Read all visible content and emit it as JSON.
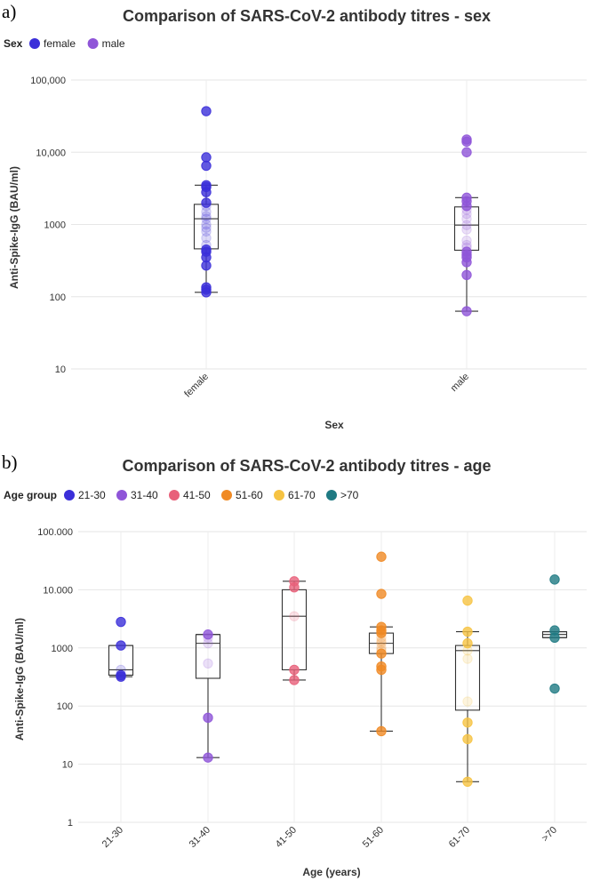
{
  "panels": [
    {
      "panel_label": "a)",
      "legend_title": "Sex",
      "chart_data": {
        "type": "box",
        "title": "Comparison of SARS-CoV-2 antibody titres - sex",
        "xlabel": "Sex",
        "ylabel": "Anti-Spike-IgG (BAU/ml)",
        "yscale": "log",
        "ylim": [
          10,
          100000
        ],
        "yticks": [
          10,
          100,
          1000,
          10000,
          100000
        ],
        "ytick_labels": [
          "10",
          "100",
          "1000",
          "10,000",
          "100,000"
        ],
        "categories": [
          "female",
          "male"
        ],
        "legend": [
          {
            "label": "female",
            "color": "#3b2fd9"
          },
          {
            "label": "male",
            "color": "#8f55d8"
          }
        ],
        "boxes": [
          {
            "category": "female",
            "color": "#3b2fd9",
            "whisker_low": 115,
            "q1": 460,
            "median": 1200,
            "q3": 1900,
            "whisker_high": 3500,
            "points": [
              37000,
              8500,
              6500,
              3500,
              3300,
              2800,
              2000,
              1800,
              1500,
              1300,
              1200,
              1000,
              900,
              800,
              650,
              520,
              450,
              420,
              350,
              270,
              135,
              125,
              115
            ]
          },
          {
            "category": "male",
            "color": "#8f55d8",
            "whisker_low": 63,
            "q1": 440,
            "median": 980,
            "q3": 1750,
            "whisker_high": 2350,
            "points": [
              15000,
              14000,
              10000,
              2350,
              2100,
              1800,
              1600,
              1400,
              1200,
              980,
              850,
              600,
              520,
              480,
              420,
              380,
              350,
              300,
              200,
              63
            ]
          }
        ]
      }
    },
    {
      "panel_label": "b)",
      "legend_title": "Age group",
      "chart_data": {
        "type": "box",
        "title": "Comparison of SARS-CoV-2 antibody titres - age",
        "xlabel": "Age (years)",
        "ylabel": "Anti-Spike-IgG (BAU/ml)",
        "yscale": "log",
        "ylim": [
          1,
          100000
        ],
        "yticks": [
          1,
          10,
          100,
          1000,
          10000,
          100000
        ],
        "ytick_labels": [
          "1",
          "10",
          "100",
          "1000",
          "10.000",
          "100.000"
        ],
        "categories": [
          "21-30",
          "31-40",
          "41-50",
          "51-60",
          "61-70",
          ">70"
        ],
        "legend": [
          {
            "label": "21-30",
            "color": "#3b2fd9"
          },
          {
            "label": "31-40",
            "color": "#8f55d8"
          },
          {
            "label": "41-50",
            "color": "#e8607a"
          },
          {
            "label": "51-60",
            "color": "#f08a24"
          },
          {
            "label": "61-70",
            "color": "#f6c342"
          },
          {
            "label": ">70",
            "color": "#1f7a83"
          }
        ],
        "boxes": [
          {
            "category": "21-30",
            "color": "#3b2fd9",
            "whisker_low": 320,
            "q1": 340,
            "median": 420,
            "q3": 1100,
            "whisker_high": 1100,
            "points": [
              2800,
              1100,
              420,
              340,
              320
            ]
          },
          {
            "category": "31-40",
            "color": "#8f55d8",
            "whisker_low": 13,
            "q1": 300,
            "median": 1200,
            "q3": 1700,
            "whisker_high": 1700,
            "points": [
              1700,
              1500,
              1200,
              540,
              63,
              13
            ]
          },
          {
            "category": "41-50",
            "color": "#e8607a",
            "whisker_low": 280,
            "q1": 420,
            "median": 3500,
            "q3": 10000,
            "whisker_high": 14000,
            "points": [
              14000,
              11000,
              3500,
              420,
              280
            ]
          },
          {
            "category": "51-60",
            "color": "#f08a24",
            "whisker_low": 37,
            "q1": 800,
            "median": 1200,
            "q3": 1800,
            "whisker_high": 2300,
            "points": [
              37000,
              8500,
              2300,
              2000,
              1800,
              1500,
              1300,
              1200,
              1000,
              900,
              800,
              480,
              420,
              37
            ]
          },
          {
            "category": "61-70",
            "color": "#f6c342",
            "whisker_low": 5,
            "q1": 85,
            "median": 900,
            "q3": 1100,
            "whisker_high": 1900,
            "points": [
              6500,
              1900,
              1200,
              900,
              650,
              120,
              52,
              27,
              5
            ]
          },
          {
            "category": ">70",
            "color": "#1f7a83",
            "whisker_low": 1500,
            "q1": 1500,
            "median": 1700,
            "q3": 1900,
            "whisker_high": 1900,
            "points": [
              15000,
              2000,
              1800,
              1500,
              200
            ]
          }
        ]
      }
    }
  ]
}
